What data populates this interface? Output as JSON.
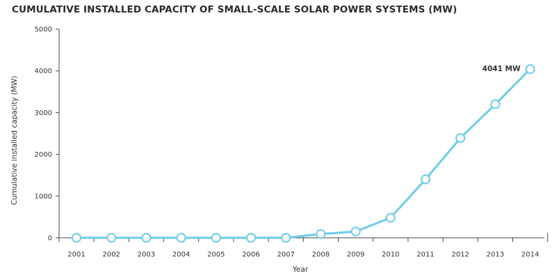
{
  "chart_data": {
    "type": "line",
    "title": "CUMULATIVE INSTALLED CAPACITY OF SMALL-SCALE SOLAR POWER SYSTEMS (MW)",
    "xlabel": "Year",
    "ylabel": "Cumulative installed capacity (MW)",
    "categories": [
      "2001",
      "2002",
      "2003",
      "2004",
      "2005",
      "2006",
      "2007",
      "2008",
      "2009",
      "2010",
      "2011",
      "2012",
      "2013",
      "2014"
    ],
    "series": [
      {
        "values": [
          0,
          0,
          0,
          0,
          0,
          0,
          0,
          90,
          150,
          480,
          1400,
          2390,
          3200,
          4041
        ],
        "color": "#6ccde8"
      }
    ],
    "ylim": [
      0,
      5000
    ],
    "yticks": [
      0,
      1000,
      2000,
      3000,
      4000,
      5000
    ],
    "grid": false,
    "annotations": [
      {
        "category": "2014",
        "text": "4041 MW"
      }
    ]
  }
}
